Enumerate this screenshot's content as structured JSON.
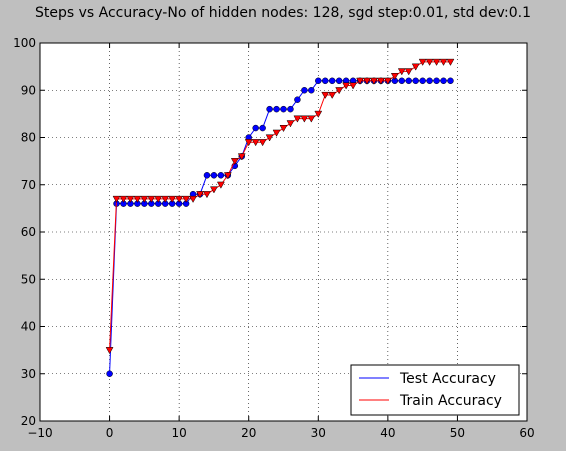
{
  "chart_data": {
    "type": "line",
    "title": "Steps vs Accuracy-No of hidden nodes: 128, sgd step:0.01, std dev:0.1",
    "xlabel": "",
    "ylabel": "",
    "xlim": [
      -10,
      60
    ],
    "ylim": [
      20,
      100
    ],
    "xticks": [
      -10,
      0,
      10,
      20,
      30,
      40,
      50,
      60
    ],
    "yticks": [
      20,
      30,
      40,
      50,
      60,
      70,
      80,
      90,
      100
    ],
    "xtick_labels": [
      "−10",
      "0",
      "10",
      "20",
      "30",
      "40",
      "50",
      "60"
    ],
    "ytick_labels": [
      "20",
      "30",
      "40",
      "50",
      "60",
      "70",
      "80",
      "90",
      "100"
    ],
    "grid": true,
    "legend_position": "lower-right",
    "series": [
      {
        "name": "Test Accuracy",
        "color": "#0000ff",
        "marker": "circle",
        "x": [
          0,
          1,
          2,
          3,
          4,
          5,
          6,
          7,
          8,
          9,
          10,
          11,
          12,
          13,
          14,
          15,
          16,
          17,
          18,
          19,
          20,
          21,
          22,
          23,
          24,
          25,
          26,
          27,
          28,
          29,
          30,
          31,
          32,
          33,
          34,
          35,
          36,
          37,
          38,
          39,
          40,
          41,
          42,
          43,
          44,
          45,
          46,
          47,
          48,
          49
        ],
        "y": [
          30,
          66,
          66,
          66,
          66,
          66,
          66,
          66,
          66,
          66,
          66,
          66,
          68,
          68,
          72,
          72,
          72,
          72,
          74,
          76,
          80,
          82,
          82,
          86,
          86,
          86,
          86,
          88,
          90,
          90,
          92,
          92,
          92,
          92,
          92,
          92,
          92,
          92,
          92,
          92,
          92,
          92,
          92,
          92,
          92,
          92,
          92,
          92,
          92,
          92
        ]
      },
      {
        "name": "Train Accuracy",
        "color": "#ff0000",
        "marker": "triangle-down",
        "x": [
          0,
          1,
          2,
          3,
          4,
          5,
          6,
          7,
          8,
          9,
          10,
          11,
          12,
          13,
          14,
          15,
          16,
          17,
          18,
          19,
          20,
          21,
          22,
          23,
          24,
          25,
          26,
          27,
          28,
          29,
          30,
          31,
          32,
          33,
          34,
          35,
          36,
          37,
          38,
          39,
          40,
          41,
          42,
          43,
          44,
          45,
          46,
          47,
          48,
          49
        ],
        "y": [
          35,
          67,
          67,
          67,
          67,
          67,
          67,
          67,
          67,
          67,
          67,
          67,
          67,
          68,
          68,
          69,
          70,
          72,
          75,
          76,
          79,
          79,
          79,
          80,
          81,
          82,
          83,
          84,
          84,
          84,
          85,
          89,
          89,
          90,
          91,
          91,
          92,
          92,
          92,
          92,
          92,
          93,
          94,
          94,
          95,
          96,
          96,
          96,
          96,
          96
        ]
      }
    ]
  }
}
